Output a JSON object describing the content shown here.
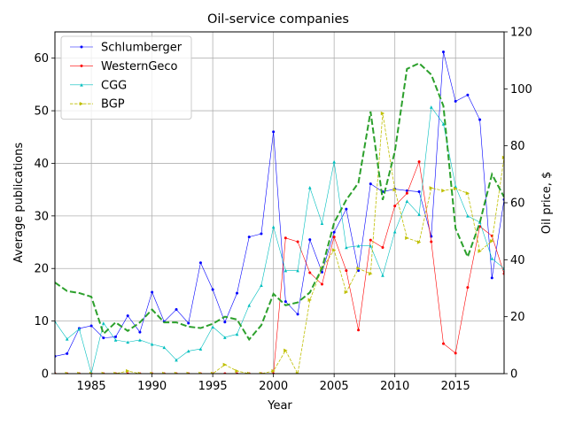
{
  "chart_data": {
    "type": "line",
    "title": "Oil-service companies",
    "xlabel": "Year",
    "ylabel": "Average publications",
    "y2label": "Oil price, $",
    "xlim": [
      1982,
      2019
    ],
    "ylim": [
      0,
      65
    ],
    "y2lim": [
      0,
      120
    ],
    "xticks": [
      1985,
      1990,
      1995,
      2000,
      2005,
      2010,
      2015
    ],
    "yticks": [
      0,
      10,
      20,
      30,
      40,
      50,
      60
    ],
    "y2ticks": [
      0,
      20,
      40,
      60,
      80,
      100,
      120
    ],
    "grid": true,
    "legend_position": "top-left",
    "x": [
      1982,
      1983,
      1984,
      1985,
      1986,
      1987,
      1988,
      1989,
      1990,
      1991,
      1992,
      1993,
      1994,
      1995,
      1996,
      1997,
      1998,
      1999,
      2000,
      2001,
      2002,
      2003,
      2004,
      2005,
      2006,
      2007,
      2008,
      2009,
      2010,
      2011,
      2012,
      2013,
      2014,
      2015,
      2016,
      2017,
      2018,
      2019
    ],
    "series": [
      {
        "name": "Schlumberger",
        "color": "#0000ff",
        "axis": "left",
        "style": "solid-dot",
        "values": [
          3.3,
          3.8,
          8.6,
          9.1,
          6.8,
          7.0,
          11.0,
          7.9,
          15.5,
          9.9,
          12.2,
          9.6,
          21.1,
          16.0,
          9.8,
          15.3,
          26.0,
          26.6,
          46.0,
          13.7,
          11.3,
          25.5,
          19.3,
          26.9,
          31.3,
          19.6,
          36.1,
          34.6,
          35.1,
          34.8,
          34.6,
          26.1,
          61.2,
          51.8,
          53.0,
          48.3,
          18.2,
          33.1
        ]
      },
      {
        "name": "WesternGeco",
        "color": "#ff0000",
        "axis": "left",
        "style": "solid-dot",
        "values": [
          0,
          0,
          0,
          0,
          0,
          0,
          0,
          0,
          0,
          0,
          0,
          0,
          0,
          0,
          0,
          0,
          0,
          0,
          0,
          25.8,
          25.1,
          19.2,
          17.0,
          26.0,
          19.6,
          8.3,
          25.4,
          24.0,
          31.9,
          34.3,
          40.3,
          25.1,
          5.7,
          3.9,
          16.4,
          28.0,
          26.2,
          19.0
        ]
      },
      {
        "name": "CGG",
        "color": "#00bfbf",
        "axis": "left",
        "style": "solid-triangle",
        "values": [
          9.9,
          6.6,
          8.5,
          0,
          9.6,
          6.4,
          6.0,
          6.4,
          5.6,
          5.0,
          2.6,
          4.3,
          4.7,
          8.9,
          6.9,
          7.5,
          13.0,
          16.8,
          27.9,
          19.6,
          19.6,
          35.4,
          28.6,
          40.3,
          24.0,
          24.3,
          24.3,
          18.7,
          27.0,
          32.8,
          30.3,
          50.7,
          47.5,
          35.6,
          30.0,
          28.8,
          21.9,
          20.0
        ]
      },
      {
        "name": "BGP",
        "color": "#bfbf00",
        "axis": "left",
        "style": "dashed-triangle",
        "values": [
          0,
          0,
          0,
          0,
          0,
          0,
          0.5,
          0,
          0,
          0,
          0,
          0,
          0,
          0,
          1.7,
          0.5,
          0,
          0,
          0.5,
          4.4,
          0,
          14.0,
          20.0,
          23.5,
          15.5,
          20.0,
          19.0,
          49.5,
          35.0,
          25.8,
          25.0,
          35.3,
          34.8,
          35.2,
          34.3,
          23.3,
          25.2,
          41.1
        ]
      },
      {
        "name": "",
        "color": "#2ca02c",
        "axis": "right",
        "style": "dashed-thick",
        "values": [
          32.0,
          29.0,
          28.3,
          27.0,
          14.0,
          18.0,
          15.0,
          18.0,
          22.5,
          18.0,
          18.0,
          16.5,
          16.0,
          17.5,
          20.0,
          19.0,
          12.0,
          17.0,
          28.0,
          24.0,
          25.0,
          28.5,
          37.0,
          53.0,
          61.0,
          67.0,
          92.0,
          61.0,
          78.0,
          107.0,
          109.0,
          105.0,
          94.0,
          51.0,
          41.0,
          53.0,
          70.0,
          62.0
        ]
      }
    ]
  }
}
